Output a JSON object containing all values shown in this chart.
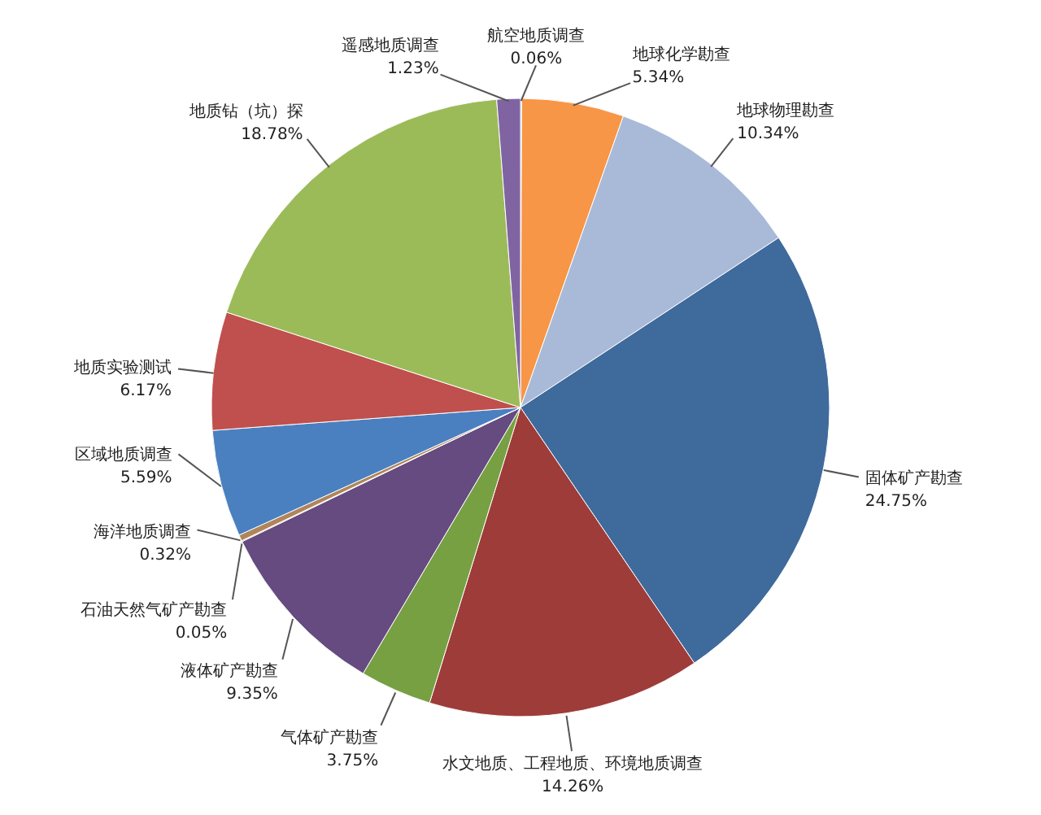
{
  "chart_data": {
    "type": "pie",
    "categories": [
      "航空地质调查",
      "地球化学勘查",
      "地球物理勘查",
      "固体矿产勘查",
      "水文地质、工程地质、环境地质调查",
      "气体矿产勘查",
      "液体矿产勘查",
      "石油天然气矿产勘查",
      "海洋地质调查",
      "区域地质调查",
      "地质实验测试",
      "地质钻（坑）探",
      "遥感地质调查"
    ],
    "values": [
      0.06,
      5.34,
      10.34,
      24.75,
      14.26,
      3.75,
      9.35,
      0.05,
      0.32,
      5.59,
      6.17,
      18.78,
      1.23
    ],
    "colors": [
      "#4bacc6",
      "#f79646",
      "#a9b9d8",
      "#3f6a9c",
      "#9e3c3a",
      "#77a042",
      "#654b80",
      "#c8855a",
      "#b0855a",
      "#4a80c0",
      "#c0504d",
      "#9bbb59",
      "#8064a2"
    ],
    "value_labels": [
      "0.06%",
      "5.34%",
      "10.34%",
      "24.75%",
      "14.26%",
      "3.75%",
      "9.35%",
      "0.05%",
      "0.32%",
      "5.59%",
      "6.17%",
      "18.78%",
      "1.23%"
    ]
  }
}
